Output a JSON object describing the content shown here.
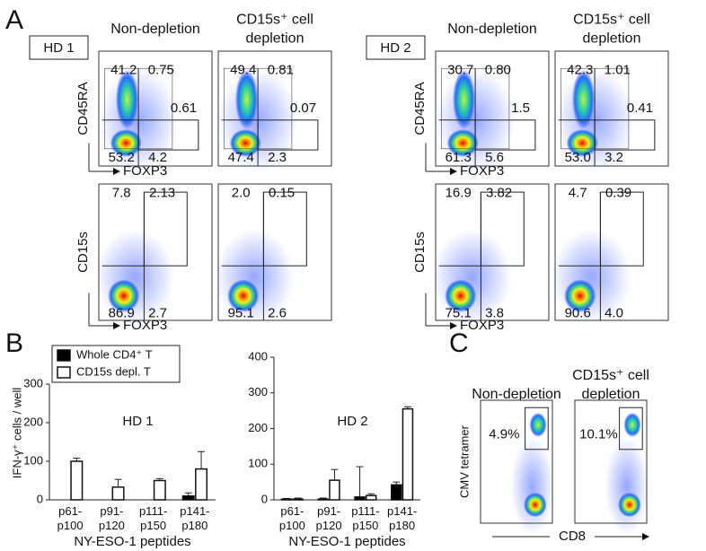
{
  "panel_a": {
    "label": "A",
    "groups": [
      {
        "donor": "HD 1",
        "headers": [
          [
            "Non-depletion"
          ],
          [
            "CD15s⁺ cell",
            "depletion"
          ]
        ],
        "rows": [
          {
            "y_label": "CD45RA",
            "x_label": "FOXP3",
            "plots": [
              {
                "tl": "41.2",
                "tr": "0.75",
                "gate": "0.61",
                "bl": "53.2",
                "br": "4.2"
              },
              {
                "tl": "49.4",
                "tr": "0.81",
                "gate": "0.07",
                "bl": "47.4",
                "br": "2.3"
              }
            ]
          },
          {
            "y_label": "CD15s",
            "x_label": "FOXP3",
            "plots": [
              {
                "tl": "7.8",
                "tr": "2.13",
                "bl": "86.9",
                "br": "2.7"
              },
              {
                "tl": "2.0",
                "tr": "0.15",
                "bl": "95.1",
                "br": "2.6"
              }
            ]
          }
        ]
      },
      {
        "donor": "HD 2",
        "headers": [
          [
            "Non-depletion"
          ],
          [
            "CD15s⁺ cell",
            "depletion"
          ]
        ],
        "rows": [
          {
            "y_label": "CD45RA",
            "x_label": "FOXP3",
            "plots": [
              {
                "tl": "30.7",
                "tr": "0.80",
                "gate": "1.5",
                "bl": "61.3",
                "br": "5.6"
              },
              {
                "tl": "42.3",
                "tr": "1.01",
                "gate": "0.41",
                "bl": "53.0",
                "br": "3.2"
              }
            ]
          },
          {
            "y_label": "CD15s",
            "x_label": "FOXP3",
            "plots": [
              {
                "tl": "16.9",
                "tr": "3.82",
                "bl": "75.1",
                "br": "3.8"
              },
              {
                "tl": "4.7",
                "tr": "0.39",
                "bl": "90.6",
                "br": "4.0"
              }
            ]
          }
        ]
      }
    ]
  },
  "panel_b": {
    "label": "B"
  },
  "chart_data": [
    {
      "type": "bar",
      "title": "HD 1",
      "y_label": "IFN-γ⁺ cells / well",
      "x_label": "NY-ESO-1 peptides",
      "categories": [
        "p61-p100",
        "p91-p120",
        "p111-p150",
        "p141-p180"
      ],
      "series": [
        {
          "name": "Whole CD4⁺ T",
          "color": "#000000",
          "values": [
            0,
            0,
            0,
            10
          ],
          "errors": [
            0,
            0,
            0,
            8
          ]
        },
        {
          "name": "CD15s depl. T",
          "color": "#ffffff",
          "values": [
            100,
            33,
            50,
            80
          ],
          "errors": [
            8,
            20,
            5,
            45
          ]
        }
      ],
      "ylim": [
        0,
        300
      ],
      "yticks": [
        0,
        100,
        200,
        300
      ],
      "legend": "upper left"
    },
    {
      "type": "bar",
      "title": "HD 2",
      "x_label": "NY-ESO-1 peptides",
      "categories": [
        "p61-p100",
        "p91-p120",
        "p111-p150",
        "p141-p180"
      ],
      "series": [
        {
          "color": "#000000",
          "values": [
            2,
            2,
            8,
            42
          ],
          "errors": [
            2,
            3,
            85,
            8
          ]
        },
        {
          "color": "#ffffff",
          "values": [
            2,
            55,
            12,
            255
          ],
          "errors": [
            3,
            30,
            5,
            6
          ]
        }
      ],
      "ylim": [
        0,
        400
      ],
      "yticks": [
        0,
        100,
        200,
        300,
        400
      ]
    }
  ],
  "panel_c": {
    "label": "C",
    "y_label": "CMV tetramer",
    "x_label": "CD8",
    "plots": [
      {
        "header": [
          "Non-depletion"
        ],
        "value": "4.9%"
      },
      {
        "header": [
          "CD15s⁺ cell",
          "depletion"
        ],
        "value": "10.1%"
      }
    ]
  }
}
